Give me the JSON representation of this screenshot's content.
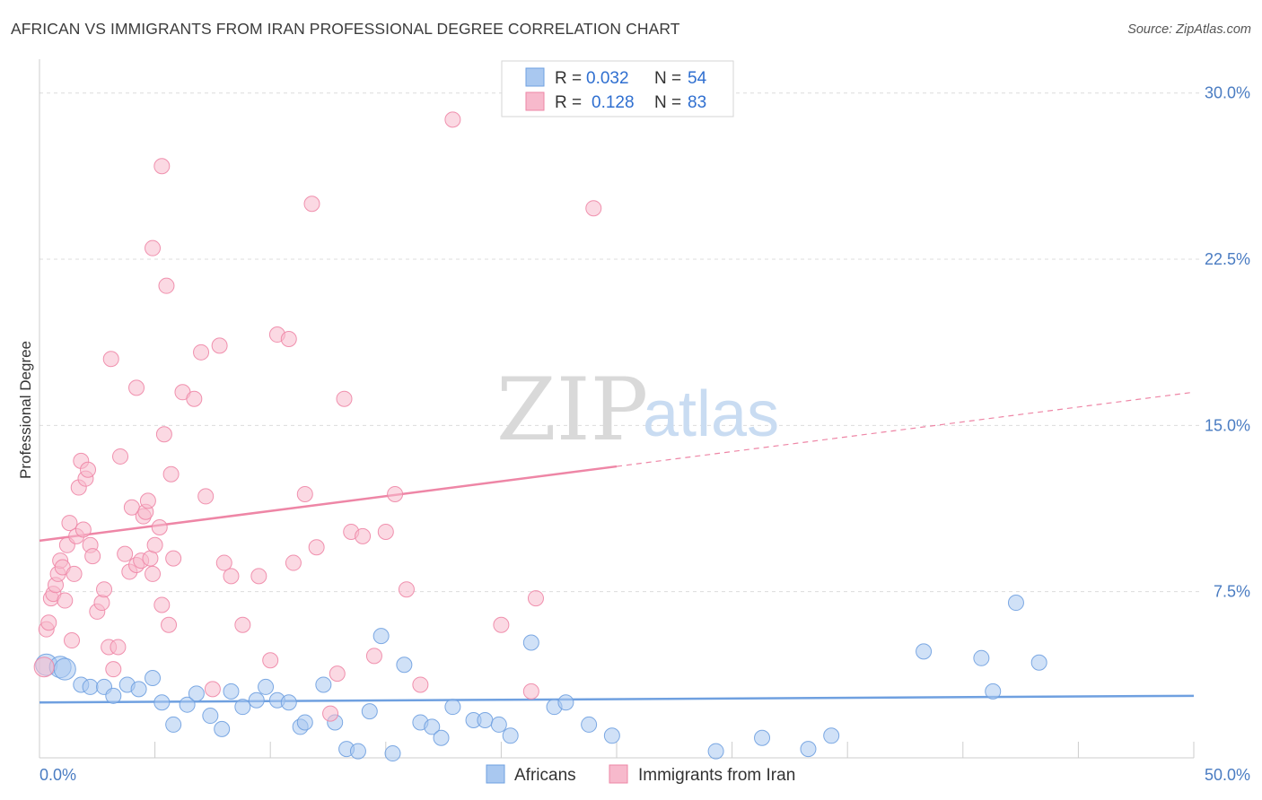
{
  "header": {
    "title": "AFRICAN VS IMMIGRANTS FROM IRAN PROFESSIONAL DEGREE CORRELATION CHART",
    "source": "Source: ZipAtlas.com"
  },
  "watermark": {
    "zip": "ZIP",
    "atlas": "atlas"
  },
  "legend": {
    "r_label": "R =",
    "n_label": "N =",
    "rows": [
      {
        "r": "0.032",
        "n": "54",
        "color": "#a9c8f0"
      },
      {
        "r": "0.128",
        "n": "83",
        "color": "#f7b9cc"
      }
    ]
  },
  "bottom_legend": {
    "africans": "Africans",
    "iran": "Immigrants from Iran"
  },
  "chart_data": {
    "type": "scatter",
    "xlabel": "",
    "ylabel": "Professional Degree",
    "xlim": [
      0,
      50
    ],
    "ylim": [
      0,
      31
    ],
    "x_tick_labels": [
      "0.0%",
      "50.0%"
    ],
    "y_ticks": [
      7.5,
      15.0,
      22.5,
      30.0
    ],
    "y_tick_labels": [
      "7.5%",
      "15.0%",
      "22.5%",
      "30.0%"
    ],
    "grid": true,
    "legend_position": "top-center",
    "series": [
      {
        "name": "Africans",
        "color": "#6fa0e0",
        "fill": "#a9c8f0",
        "trend": {
          "x0": 0,
          "y0": 2.5,
          "x1": 50,
          "y1": 2.8,
          "solid_to": 50
        },
        "points": [
          [
            0.3,
            4.2
          ],
          [
            0.9,
            4.1
          ],
          [
            1.1,
            4.0
          ],
          [
            1.8,
            3.3
          ],
          [
            2.2,
            3.2
          ],
          [
            2.8,
            3.2
          ],
          [
            3.2,
            2.8
          ],
          [
            3.8,
            3.3
          ],
          [
            4.3,
            3.1
          ],
          [
            4.9,
            3.6
          ],
          [
            5.3,
            2.5
          ],
          [
            5.8,
            1.5
          ],
          [
            6.4,
            2.4
          ],
          [
            6.8,
            2.9
          ],
          [
            7.4,
            1.9
          ],
          [
            7.9,
            1.3
          ],
          [
            8.3,
            3.0
          ],
          [
            8.8,
            2.3
          ],
          [
            9.4,
            2.6
          ],
          [
            9.8,
            3.2
          ],
          [
            10.3,
            2.6
          ],
          [
            10.8,
            2.5
          ],
          [
            11.3,
            1.4
          ],
          [
            11.5,
            1.6
          ],
          [
            12.3,
            3.3
          ],
          [
            12.8,
            1.6
          ],
          [
            13.3,
            0.4
          ],
          [
            13.8,
            0.3
          ],
          [
            14.3,
            2.1
          ],
          [
            14.8,
            5.5
          ],
          [
            15.3,
            0.2
          ],
          [
            15.8,
            4.2
          ],
          [
            16.5,
            1.6
          ],
          [
            17.0,
            1.4
          ],
          [
            17.4,
            0.9
          ],
          [
            17.9,
            2.3
          ],
          [
            18.8,
            1.7
          ],
          [
            19.3,
            1.7
          ],
          [
            19.9,
            1.5
          ],
          [
            20.4,
            1.0
          ],
          [
            21.3,
            5.2
          ],
          [
            22.3,
            2.3
          ],
          [
            22.8,
            2.5
          ],
          [
            23.8,
            1.5
          ],
          [
            24.8,
            1.0
          ],
          [
            29.3,
            0.3
          ],
          [
            31.3,
            0.9
          ],
          [
            33.3,
            0.4
          ],
          [
            34.3,
            1.0
          ],
          [
            38.3,
            4.8
          ],
          [
            40.8,
            4.5
          ],
          [
            41.3,
            3.0
          ],
          [
            42.3,
            7.0
          ],
          [
            43.3,
            4.3
          ]
        ]
      },
      {
        "name": "Immigrants from Iran",
        "color": "#ee86a6",
        "fill": "#f7b9cc",
        "trend": {
          "x0": 0,
          "y0": 9.8,
          "x1": 50,
          "y1": 16.5,
          "solid_to": 25.0
        },
        "points": [
          [
            0.2,
            4.1
          ],
          [
            0.3,
            5.8
          ],
          [
            0.4,
            6.1
          ],
          [
            0.5,
            7.2
          ],
          [
            0.6,
            7.4
          ],
          [
            0.7,
            7.8
          ],
          [
            0.8,
            8.3
          ],
          [
            0.9,
            8.9
          ],
          [
            1.0,
            8.6
          ],
          [
            1.1,
            7.1
          ],
          [
            1.2,
            9.6
          ],
          [
            1.3,
            10.6
          ],
          [
            1.4,
            5.3
          ],
          [
            1.5,
            8.3
          ],
          [
            1.6,
            10.0
          ],
          [
            1.7,
            12.2
          ],
          [
            1.8,
            13.4
          ],
          [
            1.9,
            10.3
          ],
          [
            2.0,
            12.6
          ],
          [
            2.1,
            13.0
          ],
          [
            2.2,
            9.6
          ],
          [
            2.3,
            9.1
          ],
          [
            2.5,
            6.6
          ],
          [
            2.7,
            7.0
          ],
          [
            2.8,
            7.6
          ],
          [
            3.0,
            5.0
          ],
          [
            3.2,
            4.0
          ],
          [
            3.4,
            5.0
          ],
          [
            3.5,
            13.6
          ],
          [
            3.7,
            9.2
          ],
          [
            3.9,
            8.4
          ],
          [
            4.0,
            11.3
          ],
          [
            4.2,
            8.7
          ],
          [
            4.4,
            8.9
          ],
          [
            4.5,
            10.9
          ],
          [
            4.6,
            11.1
          ],
          [
            4.7,
            11.6
          ],
          [
            4.8,
            9.0
          ],
          [
            4.9,
            8.3
          ],
          [
            5.0,
            9.6
          ],
          [
            5.2,
            10.4
          ],
          [
            5.3,
            6.9
          ],
          [
            5.4,
            14.6
          ],
          [
            5.6,
            6.0
          ],
          [
            5.7,
            12.8
          ],
          [
            5.8,
            9.0
          ],
          [
            3.1,
            18.0
          ],
          [
            4.2,
            16.7
          ],
          [
            4.9,
            23.0
          ],
          [
            5.3,
            26.7
          ],
          [
            5.5,
            21.3
          ],
          [
            6.2,
            16.5
          ],
          [
            6.7,
            16.2
          ],
          [
            7.0,
            18.3
          ],
          [
            7.2,
            11.8
          ],
          [
            7.5,
            3.1
          ],
          [
            7.8,
            18.6
          ],
          [
            8.0,
            8.8
          ],
          [
            8.3,
            8.2
          ],
          [
            8.8,
            6.0
          ],
          [
            9.5,
            8.2
          ],
          [
            10.0,
            4.4
          ],
          [
            10.3,
            19.1
          ],
          [
            10.8,
            18.9
          ],
          [
            11.0,
            8.8
          ],
          [
            11.5,
            11.9
          ],
          [
            11.8,
            25.0
          ],
          [
            12.0,
            9.5
          ],
          [
            12.6,
            2.0
          ],
          [
            12.9,
            3.8
          ],
          [
            13.2,
            16.2
          ],
          [
            13.5,
            10.2
          ],
          [
            14.0,
            10.0
          ],
          [
            14.5,
            4.6
          ],
          [
            15.0,
            10.2
          ],
          [
            15.4,
            11.9
          ],
          [
            15.9,
            7.6
          ],
          [
            16.5,
            3.3
          ],
          [
            17.9,
            28.8
          ],
          [
            20.0,
            6.0
          ],
          [
            21.3,
            3.0
          ],
          [
            21.5,
            7.2
          ],
          [
            24.0,
            24.8
          ]
        ]
      }
    ]
  }
}
